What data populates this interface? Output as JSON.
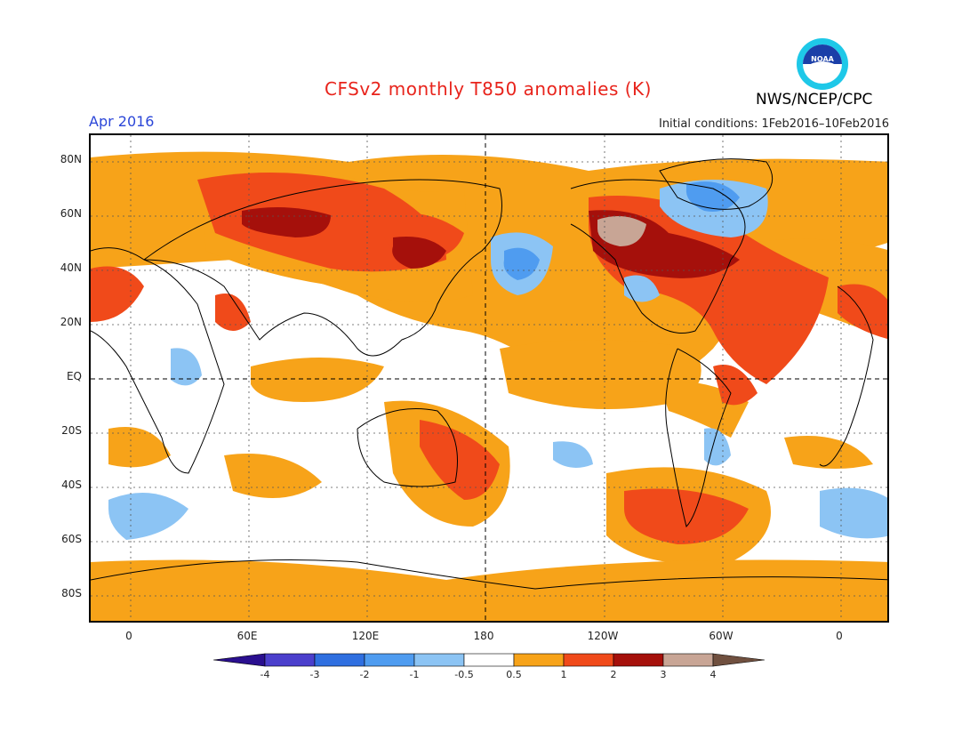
{
  "header": {
    "title": "CFSv2 monthly T850 anomalies (K)",
    "valid_month": "Apr 2016",
    "initial_conditions": "Initial conditions: 1Feb2016–10Feb2016",
    "agency": "NWS/NCEP/CPC",
    "logo_text": "NOAA"
  },
  "map": {
    "lat_labels": [
      "80N",
      "60N",
      "40N",
      "20N",
      "EQ",
      "20S",
      "40S",
      "60S",
      "80S"
    ],
    "lon_labels": [
      "0",
      "60E",
      "120E",
      "180",
      "120W",
      "60W",
      "0"
    ]
  },
  "colorbar": {
    "labels": [
      "-4",
      "-3",
      "-2",
      "-1",
      "-0.5",
      "0.5",
      "1",
      "2",
      "3",
      "4"
    ],
    "colors": [
      "#2a0f8f",
      "#4b3fcc",
      "#2f6fe0",
      "#4f9cf0",
      "#8cc4f4",
      "#ffffff",
      "#f7a319",
      "#f04a1a",
      "#a5100b",
      "#c8a595",
      "#70503f"
    ]
  }
}
